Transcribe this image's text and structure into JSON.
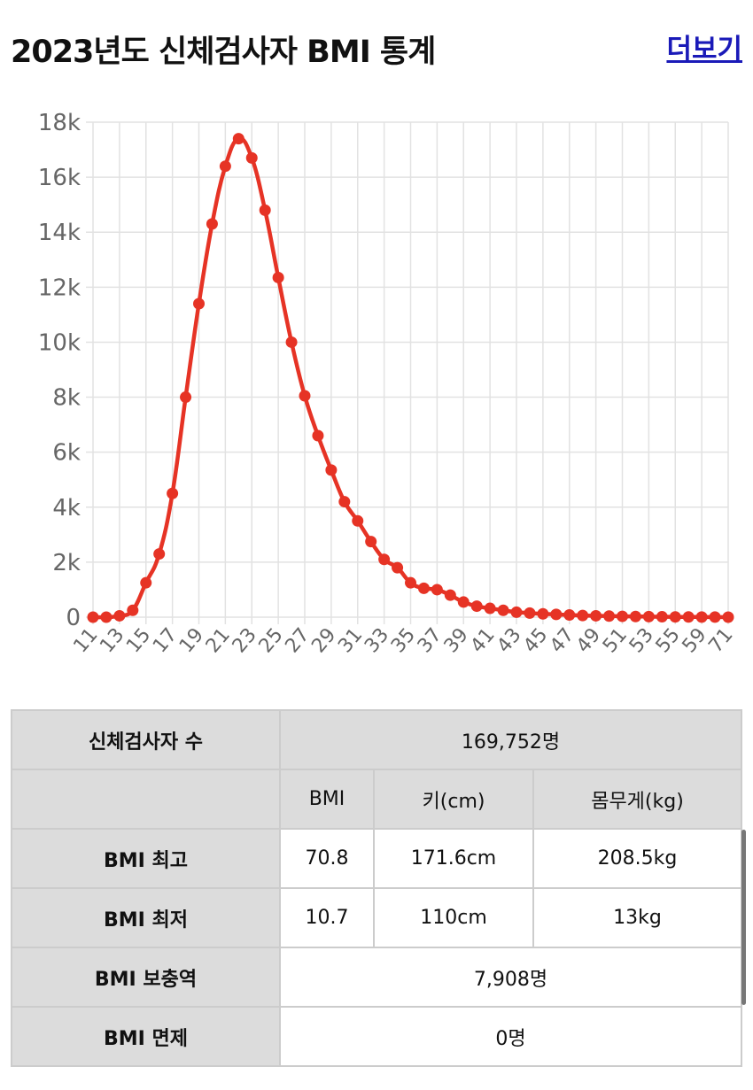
{
  "header": {
    "title": "2023년도 신체검사자 BMI 통계",
    "link": "더보기"
  },
  "chart_data": {
    "type": "line",
    "categories": [
      "11",
      null,
      "13",
      null,
      "15",
      null,
      "17",
      null,
      "19",
      null,
      "21",
      null,
      "23",
      null,
      "25",
      null,
      "27",
      null,
      "29",
      null,
      "31",
      null,
      "33",
      null,
      "35",
      null,
      "37",
      null,
      "39",
      null,
      "41",
      null,
      "43",
      null,
      "45",
      null,
      "47",
      null,
      "49",
      null,
      "51",
      null,
      "53",
      null,
      "55",
      null,
      "59",
      null,
      "71"
    ],
    "series": [
      {
        "color": "#e63325",
        "values": [
          0,
          0,
          50,
          250,
          1250,
          2300,
          4500,
          8000,
          11400,
          14300,
          16400,
          17400,
          16700,
          14800,
          12350,
          10000,
          8050,
          6600,
          5350,
          4200,
          3500,
          2750,
          2100,
          1800,
          1250,
          1050,
          1000,
          800,
          550,
          400,
          320,
          250,
          180,
          150,
          120,
          100,
          80,
          60,
          50,
          40,
          30,
          25,
          20,
          15,
          10,
          8,
          5,
          3,
          1
        ]
      }
    ],
    "ylim": [
      0,
      18000
    ],
    "yticks": [
      0,
      {
        "value": 2000,
        "label": "2k"
      },
      {
        "value": 4000,
        "label": "4k"
      },
      {
        "value": 6000,
        "label": "6k"
      },
      {
        "value": 8000,
        "label": "8k"
      },
      {
        "value": 10000,
        "label": "10k"
      },
      {
        "value": 12000,
        "label": "12k"
      },
      {
        "value": 14000,
        "label": "14k"
      },
      {
        "value": 16000,
        "label": "16k"
      },
      {
        "value": 18000,
        "label": "18k"
      }
    ],
    "grid": true
  },
  "table": {
    "rows": [
      [
        "신체검사자 수",
        "169,752명"
      ],
      [
        "BMI",
        "키(cm)",
        "몸무게(kg)"
      ],
      [
        "BMI 최고",
        "70.8",
        "171.6cm",
        "208.5kg"
      ],
      [
        "BMI 최저",
        "10.7",
        "110cm",
        "13kg"
      ],
      [
        "BMI 보충역",
        "7,908명"
      ],
      [
        "BMI 면제",
        "0명"
      ]
    ]
  }
}
